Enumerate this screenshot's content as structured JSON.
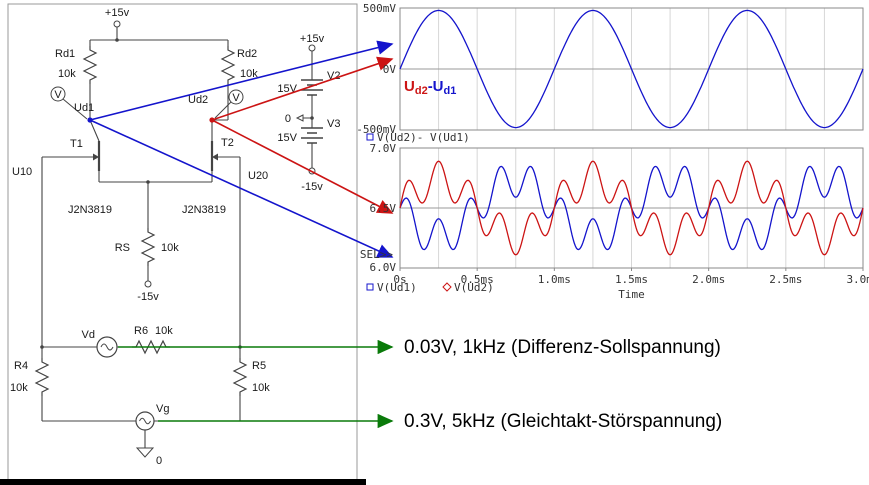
{
  "colors": {
    "blue": "#1414cc",
    "red": "#cc1414",
    "green": "#0a7a0a",
    "wire": "#444444",
    "grid": "#d6d6d6",
    "axis": "#8a8a8a"
  },
  "circuit": {
    "labels": {
      "vplus_top": "+15v",
      "rd1_name": "Rd1",
      "rd1_value": "10k",
      "rd2_name": "Rd2",
      "rd2_value": "10k",
      "probe1": "V",
      "probe2": "V",
      "ud1": "Ud1",
      "ud2": "Ud2",
      "t1": "T1",
      "t2": "T2",
      "u10": "U10",
      "u20": "U20",
      "t1_model": "J2N3819",
      "t2_model": "J2N3819",
      "rs_name": "RS",
      "rs_value": "10k",
      "vminus_rs": "-15v",
      "vd_name": "Vd",
      "r6_name": "R6",
      "r6_value": "10k",
      "r4_name": "R4",
      "r4_value": "10k",
      "r5_name": "R5",
      "r5_value": "10k",
      "vg_name": "Vg",
      "gnd_zero": "0",
      "v2_top": "+15v",
      "v2_name": "V2",
      "v2_value": "15V",
      "v3_ref": "0",
      "v3_name": "V3",
      "v3_value": "15V",
      "v_bottom": "-15v"
    }
  },
  "annotations": {
    "diff_source": "0.03V, 1kHz (Differenz-Sollspannung)",
    "common_source": "0.3V, 5kHz (Gleichtakt-Störspannung)"
  },
  "chart_data": [
    {
      "type": "line",
      "title": "",
      "x": {
        "min_s": 0,
        "max_s": 0.003
      },
      "ylim": [
        -0.5,
        0.5
      ],
      "y_tick_labels": [
        "500mV",
        "0V",
        "-500mV"
      ],
      "grid_divisions_x": 12,
      "inline_label": [
        {
          "text": "U",
          "color": "#cc1414",
          "sub": false
        },
        {
          "text": "d2",
          "color": "#cc1414",
          "sub": true
        },
        {
          "text": "-U",
          "color": "#1414cc",
          "sub": false
        },
        {
          "text": "d1",
          "color": "#1414cc",
          "sub": true
        }
      ],
      "legend": [
        {
          "marker": "square",
          "label": "V(Ud2)- V(Ud1)",
          "color": "#1414cc"
        }
      ],
      "series": [
        {
          "name": "V(Ud2)-V(Ud1)",
          "color": "#1414cc",
          "offset_V": 0,
          "components": [
            {
              "amplitude_V": 0.48,
              "frequency_Hz": 1000,
              "phase_deg": 0
            }
          ]
        }
      ]
    },
    {
      "type": "line",
      "xlabel": "Time",
      "x": {
        "min_s": 0,
        "max_s": 0.003
      },
      "ylim": [
        6.0,
        7.0
      ],
      "y_tick_labels": [
        "7.0V",
        "6.5V",
        "6.0V"
      ],
      "x_tick_labels": [
        "0s",
        "0.5ms",
        "1.0ms",
        "1.5ms",
        "2.0ms",
        "2.5ms",
        "3.0ms"
      ],
      "sel_label": "SEL>>",
      "grid_divisions_x": 12,
      "legend": [
        {
          "marker": "square",
          "label": "V(Ud1)",
          "color": "#1414cc"
        },
        {
          "marker": "diamond",
          "label": "V(Ud2)",
          "color": "#cc1414"
        }
      ],
      "series": [
        {
          "name": "V(Ud1)",
          "color": "#1414cc",
          "offset_V": 6.5,
          "components": [
            {
              "amplitude_V": -0.24,
              "frequency_Hz": 1000,
              "phase_deg": 0
            },
            {
              "amplitude_V": 0.15,
              "frequency_Hz": 5000,
              "phase_deg": 0
            }
          ]
        },
        {
          "name": "V(Ud2)",
          "color": "#cc1414",
          "offset_V": 6.5,
          "components": [
            {
              "amplitude_V": 0.24,
              "frequency_Hz": 1000,
              "phase_deg": 0
            },
            {
              "amplitude_V": 0.15,
              "frequency_Hz": 5000,
              "phase_deg": 0
            }
          ]
        }
      ]
    }
  ]
}
